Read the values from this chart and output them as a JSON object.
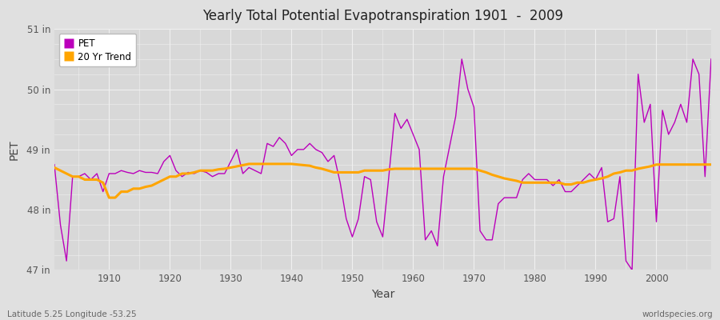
{
  "title": "Yearly Total Potential Evapotranspiration 1901  -  2009",
  "xlabel": "Year",
  "ylabel": "PET",
  "subtitle_left": "Latitude 5.25 Longitude -53.25",
  "subtitle_right": "worldspecies.org",
  "ylim": [
    47.0,
    51.0
  ],
  "yticks": [
    47,
    48,
    49,
    50,
    51
  ],
  "ytick_labels": [
    "47 in",
    "48 in",
    "49 in",
    "50 in",
    "51 in"
  ],
  "xlim": [
    1901,
    2009
  ],
  "xticks": [
    1910,
    1920,
    1930,
    1940,
    1950,
    1960,
    1970,
    1980,
    1990,
    2000
  ],
  "pet_color": "#bb00bb",
  "trend_color": "#ffa500",
  "bg_color": "#e0e0e0",
  "plot_bg_color": "#d8d8d8",
  "grid_color": "#f0f0f0",
  "pet_years": [
    1901,
    1902,
    1903,
    1904,
    1905,
    1906,
    1907,
    1908,
    1909,
    1910,
    1911,
    1912,
    1913,
    1914,
    1915,
    1916,
    1917,
    1918,
    1919,
    1920,
    1921,
    1922,
    1923,
    1924,
    1925,
    1926,
    1927,
    1928,
    1929,
    1930,
    1931,
    1932,
    1933,
    1934,
    1935,
    1936,
    1937,
    1938,
    1939,
    1940,
    1941,
    1942,
    1943,
    1944,
    1945,
    1946,
    1947,
    1948,
    1949,
    1950,
    1951,
    1952,
    1953,
    1954,
    1955,
    1956,
    1957,
    1958,
    1959,
    1960,
    1961,
    1962,
    1963,
    1964,
    1965,
    1966,
    1967,
    1968,
    1969,
    1970,
    1971,
    1972,
    1973,
    1974,
    1975,
    1976,
    1977,
    1978,
    1979,
    1980,
    1981,
    1982,
    1983,
    1984,
    1985,
    1986,
    1987,
    1988,
    1989,
    1990,
    1991,
    1992,
    1993,
    1994,
    1995,
    1996,
    1997,
    1998,
    1999,
    2000,
    2001,
    2002,
    2003,
    2004,
    2005,
    2006,
    2007,
    2008,
    2009
  ],
  "pet_values": [
    48.75,
    47.75,
    47.15,
    48.55,
    48.55,
    48.6,
    48.5,
    48.6,
    48.3,
    48.6,
    48.6,
    48.65,
    48.62,
    48.6,
    48.65,
    48.62,
    48.62,
    48.6,
    48.8,
    48.9,
    48.65,
    48.55,
    48.62,
    48.6,
    48.65,
    48.62,
    48.55,
    48.6,
    48.6,
    48.8,
    49.0,
    48.6,
    48.7,
    48.65,
    48.6,
    49.1,
    49.05,
    49.2,
    49.1,
    48.9,
    49.0,
    49.0,
    49.1,
    49.0,
    48.95,
    48.8,
    48.9,
    48.45,
    47.85,
    47.55,
    47.85,
    48.55,
    48.5,
    47.8,
    47.55,
    48.55,
    49.6,
    49.35,
    49.5,
    49.25,
    49.0,
    47.5,
    47.65,
    47.4,
    48.55,
    49.05,
    49.55,
    50.5,
    50.0,
    49.7,
    47.65,
    47.5,
    47.5,
    48.1,
    48.2,
    48.2,
    48.2,
    48.5,
    48.6,
    48.5,
    48.5,
    48.5,
    48.4,
    48.5,
    48.3,
    48.3,
    48.4,
    48.5,
    48.6,
    48.5,
    48.7,
    47.8,
    47.85,
    48.55,
    47.15,
    47.0,
    50.25,
    49.45,
    49.75,
    47.8,
    49.65,
    49.25,
    49.45,
    49.75,
    49.45,
    50.5,
    50.25,
    48.55,
    50.5
  ],
  "trend_years": [
    1901,
    1902,
    1903,
    1904,
    1905,
    1906,
    1907,
    1908,
    1909,
    1910,
    1911,
    1912,
    1913,
    1914,
    1915,
    1916,
    1917,
    1918,
    1919,
    1920,
    1921,
    1922,
    1923,
    1924,
    1925,
    1926,
    1927,
    1928,
    1929,
    1930,
    1931,
    1932,
    1933,
    1934,
    1935,
    1936,
    1937,
    1938,
    1939,
    1940,
    1941,
    1942,
    1943,
    1944,
    1945,
    1946,
    1947,
    1948,
    1949,
    1950,
    1951,
    1952,
    1953,
    1954,
    1955,
    1956,
    1957,
    1958,
    1959,
    1960,
    1961,
    1962,
    1963,
    1964,
    1965,
    1966,
    1967,
    1968,
    1969,
    1970,
    1971,
    1972,
    1973,
    1974,
    1975,
    1976,
    1977,
    1978,
    1979,
    1980,
    1981,
    1982,
    1983,
    1984,
    1985,
    1986,
    1987,
    1988,
    1989,
    1990,
    1991,
    1992,
    1993,
    1994,
    1995,
    1996,
    1997,
    1998,
    1999,
    2000,
    2001,
    2002,
    2003,
    2004,
    2005,
    2006,
    2007,
    2008,
    2009
  ],
  "trend_values": [
    48.7,
    48.65,
    48.6,
    48.55,
    48.55,
    48.5,
    48.5,
    48.5,
    48.45,
    48.2,
    48.2,
    48.3,
    48.3,
    48.35,
    48.35,
    48.38,
    48.4,
    48.45,
    48.5,
    48.55,
    48.55,
    48.6,
    48.6,
    48.62,
    48.65,
    48.65,
    48.65,
    48.67,
    48.68,
    48.7,
    48.72,
    48.74,
    48.76,
    48.76,
    48.76,
    48.76,
    48.76,
    48.76,
    48.76,
    48.76,
    48.75,
    48.74,
    48.73,
    48.7,
    48.68,
    48.65,
    48.62,
    48.62,
    48.62,
    48.62,
    48.62,
    48.65,
    48.65,
    48.65,
    48.65,
    48.67,
    48.68,
    48.68,
    48.68,
    48.68,
    48.68,
    48.68,
    48.68,
    48.68,
    48.68,
    48.68,
    48.68,
    48.68,
    48.68,
    48.68,
    48.65,
    48.62,
    48.58,
    48.55,
    48.52,
    48.5,
    48.48,
    48.45,
    48.45,
    48.45,
    48.45,
    48.45,
    48.45,
    48.45,
    48.42,
    48.42,
    48.45,
    48.45,
    48.48,
    48.5,
    48.52,
    48.55,
    48.6,
    48.62,
    48.65,
    48.65,
    48.68,
    48.7,
    48.72,
    48.75,
    48.75,
    48.75,
    48.75,
    48.75,
    48.75,
    48.75,
    48.75,
    48.75,
    48.75
  ]
}
